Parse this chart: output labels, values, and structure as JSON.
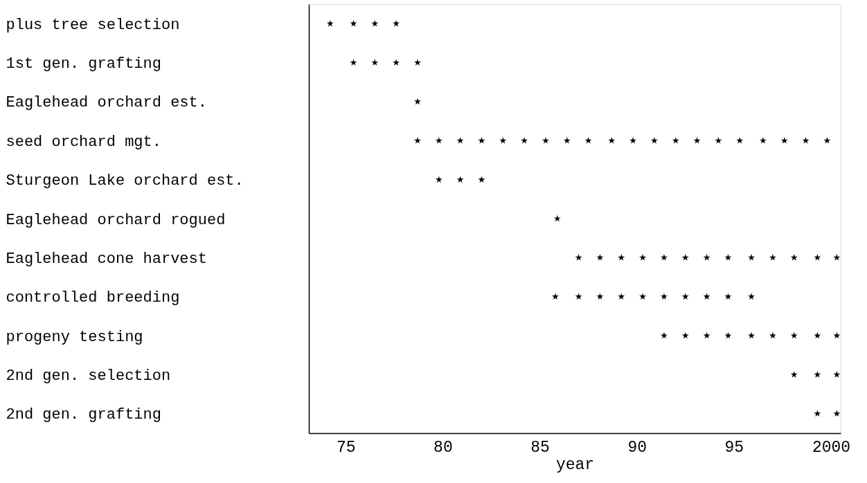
{
  "chart_data": {
    "type": "scatter",
    "orientation": "horizontal",
    "xlabel": "year",
    "marker": "star",
    "grid": false,
    "categories": [
      "plus tree selection",
      "1st gen. grafting",
      "Eaglehead orchard est.",
      "seed orchard mgt.",
      "Sturgeon Lake orchard est.",
      "Eaglehead orchard rogued",
      "Eaglehead cone harvest",
      "controlled breeding",
      "progeny testing",
      "2nd gen. selection",
      "2nd gen. grafting"
    ],
    "series": [
      {
        "color": "#000000",
        "values": [
          1974.2,
          1975.4,
          1978.7,
          1978.7,
          1979.8,
          1985.9,
          1987.0,
          1985.8,
          1991.4,
          1998.1,
          1999.3
        ]
      },
      {
        "color": "#000000",
        "values": [
          1975.4,
          1976.5,
          null,
          1979.8,
          1980.9,
          null,
          1988.1,
          1987.0,
          1992.5,
          1999.3,
          2000.3
        ]
      },
      {
        "color": "#000000",
        "values": [
          1976.5,
          1977.6,
          null,
          1980.9,
          1982.0,
          null,
          1989.2,
          1988.1,
          1993.6,
          2000.3,
          null
        ]
      },
      {
        "color": "#000000",
        "values": [
          1977.6,
          1978.7,
          null,
          1982.0,
          null,
          null,
          1990.3,
          1989.2,
          1994.7,
          null,
          null
        ]
      },
      {
        "color": "#000000",
        "values": [
          null,
          null,
          null,
          1983.1,
          null,
          null,
          1991.4,
          1990.3,
          1995.9,
          null,
          null
        ]
      },
      {
        "color": "#000000",
        "values": [
          null,
          null,
          null,
          1984.2,
          null,
          null,
          1992.5,
          1991.4,
          1997.0,
          null,
          null
        ]
      },
      {
        "color": "#000000",
        "values": [
          null,
          null,
          null,
          1985.3,
          null,
          null,
          1993.6,
          1992.5,
          1998.1,
          null,
          null
        ]
      },
      {
        "color": "#000000",
        "values": [
          null,
          null,
          null,
          1986.4,
          null,
          null,
          1994.7,
          1993.6,
          1999.3,
          null,
          null
        ]
      },
      {
        "color": "#000000",
        "values": [
          null,
          null,
          null,
          1987.5,
          null,
          null,
          1995.9,
          1994.7,
          2000.3,
          null,
          null
        ]
      },
      {
        "color": "#000000",
        "values": [
          null,
          null,
          null,
          1988.7,
          null,
          null,
          1997.0,
          1995.9,
          null,
          null,
          null
        ]
      },
      {
        "color": "#000000",
        "values": [
          null,
          null,
          null,
          1989.8,
          null,
          null,
          1998.1,
          null,
          null,
          null,
          null
        ]
      },
      {
        "color": "#000000",
        "values": [
          null,
          null,
          null,
          1990.9,
          null,
          null,
          1999.3,
          null,
          null,
          null,
          null
        ]
      },
      {
        "color": "#000000",
        "values": [
          null,
          null,
          null,
          1992.0,
          null,
          null,
          2000.3,
          null,
          null,
          null,
          null
        ]
      },
      {
        "color": "#000000",
        "values": [
          null,
          null,
          null,
          1993.1,
          null,
          null,
          null,
          null,
          null,
          null,
          null
        ]
      },
      {
        "color": "#000000",
        "values": [
          null,
          null,
          null,
          1994.2,
          null,
          null,
          null,
          null,
          null,
          null,
          null
        ]
      },
      {
        "color": "#000000",
        "values": [
          null,
          null,
          null,
          1995.3,
          null,
          null,
          null,
          null,
          null,
          null,
          null
        ]
      },
      {
        "color": "#000000",
        "values": [
          null,
          null,
          null,
          1996.5,
          null,
          null,
          null,
          null,
          null,
          null,
          null
        ]
      },
      {
        "color": "#000000",
        "values": [
          null,
          null,
          null,
          1997.6,
          null,
          null,
          null,
          null,
          null,
          null,
          null
        ]
      },
      {
        "color": "#000000",
        "values": [
          null,
          null,
          null,
          1998.7,
          null,
          null,
          null,
          null,
          null,
          null,
          null
        ]
      },
      {
        "color": "#000000",
        "values": [
          null,
          null,
          null,
          1999.8,
          null,
          null,
          null,
          null,
          null,
          null,
          null
        ]
      }
    ],
    "xlim": [
      1973.1,
      2000.5
    ],
    "xticks": [
      {
        "value": 1975,
        "label": "75"
      },
      {
        "value": 1980,
        "label": "80"
      },
      {
        "value": 1985,
        "label": "85"
      },
      {
        "value": 1990,
        "label": "90"
      },
      {
        "value": 1995,
        "label": "95"
      },
      {
        "value": 2000,
        "label": "2000"
      }
    ]
  }
}
